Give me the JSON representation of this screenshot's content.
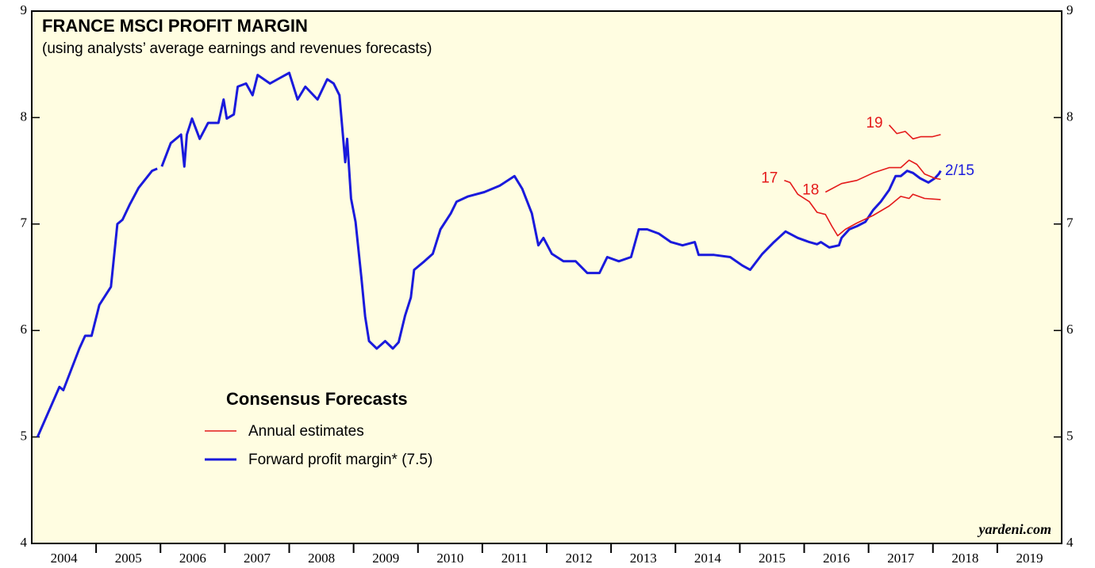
{
  "chart_data": {
    "type": "line",
    "title": "FRANCE MSCI PROFIT MARGIN",
    "subtitle": "(using analysts’ average earnings and revenues forecasts)",
    "source": "yardeni.com",
    "xlim": [
      2004,
      2020
    ],
    "xticks": [
      {
        "value": 2004.5,
        "label": "2004"
      },
      {
        "value": 2005.5,
        "label": "2005"
      },
      {
        "value": 2006.5,
        "label": "2006"
      },
      {
        "value": 2007.5,
        "label": "2007"
      },
      {
        "value": 2008.5,
        "label": "2008"
      },
      {
        "value": 2009.5,
        "label": "2009"
      },
      {
        "value": 2010.5,
        "label": "2010"
      },
      {
        "value": 2011.5,
        "label": "2011"
      },
      {
        "value": 2012.5,
        "label": "2012"
      },
      {
        "value": 2013.5,
        "label": "2013"
      },
      {
        "value": 2014.5,
        "label": "2014"
      },
      {
        "value": 2015.5,
        "label": "2015"
      },
      {
        "value": 2016.5,
        "label": "2016"
      },
      {
        "value": 2017.5,
        "label": "2017"
      },
      {
        "value": 2018.5,
        "label": "2018"
      },
      {
        "value": 2019.5,
        "label": "2019"
      }
    ],
    "ylim": [
      4,
      9
    ],
    "yticks": [
      4,
      5,
      6,
      7,
      8,
      9
    ],
    "legend": {
      "title": "Consensus Forecasts",
      "items": [
        "Annual estimates",
        "Forward profit margin* (7.5)"
      ]
    },
    "annotations": [
      "2/15"
    ],
    "series": [
      {
        "name": "Forward profit margin* (7.5)",
        "color": "#1a1adc",
        "width": 3,
        "x": [
          2004.09,
          2004.43,
          2004.49,
          2004.74,
          2004.83,
          2004.93,
          2005.05,
          2005.23,
          2005.33,
          2005.41,
          2005.52,
          2005.66,
          2005.87,
          2005.95,
          null,
          2006.02,
          2006.16,
          2006.32,
          2006.37,
          2006.41,
          2006.49,
          2006.61,
          2006.74,
          2006.9,
          2006.98,
          2007.03,
          2007.14,
          2007.2,
          2007.33,
          2007.43,
          2007.51,
          2007.7,
          2007.82,
          2008.0,
          2008.13,
          2008.25,
          2008.44,
          2008.59,
          2008.69,
          2008.78,
          2008.87,
          2008.9,
          2008.96,
          2009.03,
          2009.12,
          2009.18,
          2009.24,
          2009.36,
          2009.49,
          2009.61,
          2009.7,
          2009.8,
          2009.89,
          2009.94,
          2010.1,
          2010.23,
          2010.35,
          2010.51,
          2010.6,
          2010.78,
          2011.03,
          2011.27,
          2011.5,
          2011.62,
          2011.77,
          2011.87,
          2011.95,
          2012.08,
          2012.26,
          2012.45,
          2012.63,
          2012.82,
          2012.94,
          2013.12,
          2013.31,
          2013.43,
          2013.56,
          2013.74,
          2013.93,
          2014.11,
          2014.3,
          2014.36,
          2014.6,
          2014.85,
          2015.04,
          2015.16,
          2015.35,
          2015.53,
          2015.71,
          2015.9,
          2016.08,
          2016.2,
          2016.26,
          2016.39,
          2016.54,
          2016.58,
          2016.7,
          2016.82,
          2016.95,
          2017.07,
          2017.19,
          2017.32,
          2017.42,
          2017.5,
          2017.6,
          2017.69,
          2017.8,
          2017.93,
          2018.03,
          2018.09,
          2018.12
        ],
        "values": [
          5.0,
          5.47,
          5.44,
          5.83,
          5.95,
          5.95,
          6.24,
          6.41,
          7.0,
          7.04,
          7.18,
          7.34,
          7.5,
          7.52,
          null,
          7.54,
          7.76,
          7.84,
          7.54,
          7.84,
          7.99,
          7.8,
          7.95,
          7.95,
          8.17,
          7.99,
          8.03,
          8.29,
          8.32,
          8.21,
          8.4,
          8.32,
          8.36,
          8.42,
          8.17,
          8.29,
          8.17,
          8.36,
          8.32,
          8.21,
          7.58,
          7.8,
          7.24,
          7.02,
          6.5,
          6.13,
          5.9,
          5.83,
          5.9,
          5.83,
          5.89,
          6.14,
          6.31,
          6.57,
          6.65,
          6.72,
          6.95,
          7.1,
          7.21,
          7.26,
          7.3,
          7.36,
          7.45,
          7.33,
          7.1,
          6.8,
          6.87,
          6.72,
          6.65,
          6.65,
          6.54,
          6.54,
          6.69,
          6.65,
          6.69,
          6.95,
          6.95,
          6.91,
          6.83,
          6.8,
          6.83,
          6.71,
          6.71,
          6.69,
          6.61,
          6.57,
          6.72,
          6.83,
          6.93,
          6.87,
          6.83,
          6.81,
          6.83,
          6.78,
          6.8,
          6.87,
          6.95,
          6.98,
          7.02,
          7.13,
          7.21,
          7.32,
          7.45,
          7.45,
          7.5,
          7.48,
          7.43,
          7.39,
          7.43,
          7.47,
          7.5
        ]
      },
      {
        "name": "17",
        "color": "#e41a1a",
        "width": 1.6,
        "x": [
          2015.69,
          2015.78,
          2015.9,
          2016.08,
          2016.2,
          2016.33,
          2016.43,
          2016.52,
          2016.64,
          2016.82,
          2017.07,
          2017.32,
          2017.5,
          2017.63,
          2017.69,
          2017.87,
          2018.12
        ],
        "values": [
          7.41,
          7.39,
          7.28,
          7.21,
          7.11,
          7.09,
          6.98,
          6.89,
          6.95,
          7.01,
          7.08,
          7.17,
          7.26,
          7.24,
          7.28,
          7.24,
          7.23
        ]
      },
      {
        "name": "18",
        "color": "#e41a1a",
        "width": 1.6,
        "x": [
          2016.33,
          2016.58,
          2016.82,
          2017.07,
          2017.32,
          2017.5,
          2017.63,
          2017.75,
          2017.87,
          2018.03,
          2018.12
        ],
        "values": [
          7.3,
          7.38,
          7.41,
          7.48,
          7.53,
          7.53,
          7.6,
          7.56,
          7.47,
          7.43,
          7.42
        ]
      },
      {
        "name": "19",
        "color": "#e41a1a",
        "width": 1.6,
        "x": [
          2017.32,
          2017.44,
          2017.57,
          2017.69,
          2017.81,
          2017.99,
          2018.12
        ],
        "values": [
          7.93,
          7.85,
          7.87,
          7.8,
          7.82,
          7.82,
          7.84
        ]
      }
    ]
  }
}
